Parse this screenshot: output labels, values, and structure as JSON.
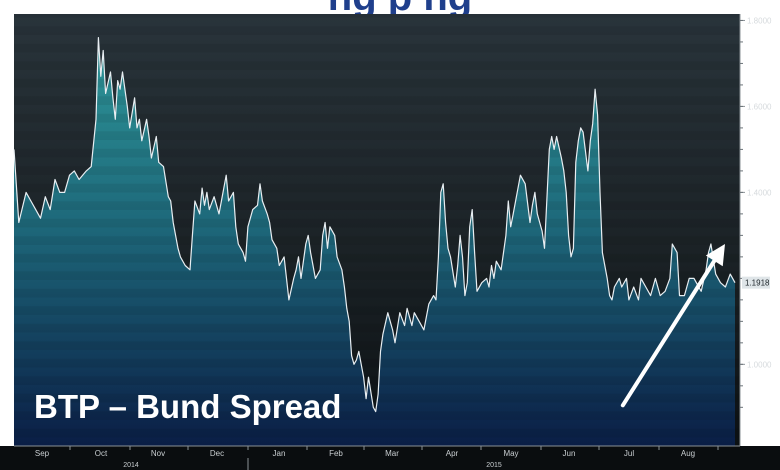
{
  "header_fragment": "ng   p   ng",
  "colors": {
    "background": "#1b2328",
    "line": "#e8eef2",
    "fill_top": "#2d8f96",
    "fill_bottom": "#0d2550",
    "arrow": "#ffffff",
    "label": "#ffffff",
    "header_text": "#1f3f8c"
  },
  "chart_data": {
    "type": "area",
    "annotation": "BTP – Bund Spread",
    "last_value_label": "1.1918",
    "y_ticks": [
      "1.8000",
      "1.6000",
      "1.4000",
      "1.0000"
    ],
    "y_tick_values": [
      1.8,
      1.6,
      1.4,
      1.0
    ],
    "ylim": [
      0.81,
      1.815
    ],
    "x_months": [
      "Sep",
      "Oct",
      "Nov",
      "Dec",
      "Jan",
      "Feb",
      "Mar",
      "Apr",
      "May",
      "Jun",
      "Jul",
      "Aug"
    ],
    "x_years": [
      "2014",
      "2015"
    ],
    "arrow": {
      "from": [
        250,
        0.9
      ],
      "to": [
        299,
        1.28
      ]
    },
    "series": [
      {
        "points": [
          [
            0,
            1.5
          ],
          [
            2,
            1.33
          ],
          [
            5,
            1.4
          ],
          [
            7,
            1.38
          ],
          [
            9,
            1.36
          ],
          [
            11,
            1.34
          ],
          [
            13,
            1.39
          ],
          [
            15,
            1.36
          ],
          [
            17,
            1.43
          ],
          [
            19,
            1.4
          ],
          [
            21,
            1.4
          ],
          [
            23,
            1.44
          ],
          [
            25,
            1.45
          ],
          [
            27,
            1.43
          ],
          [
            30,
            1.45
          ],
          [
            32,
            1.46
          ],
          [
            34,
            1.57
          ],
          [
            35,
            1.76
          ],
          [
            36,
            1.67
          ],
          [
            37,
            1.73
          ],
          [
            38,
            1.63
          ],
          [
            40,
            1.68
          ],
          [
            41,
            1.62
          ],
          [
            42,
            1.57
          ],
          [
            43,
            1.66
          ],
          [
            44,
            1.64
          ],
          [
            45,
            1.68
          ],
          [
            47,
            1.6
          ],
          [
            48,
            1.55
          ],
          [
            50,
            1.62
          ],
          [
            51,
            1.55
          ],
          [
            52,
            1.57
          ],
          [
            53,
            1.52
          ],
          [
            55,
            1.57
          ],
          [
            56,
            1.53
          ],
          [
            57,
            1.48
          ],
          [
            59,
            1.53
          ],
          [
            60,
            1.47
          ],
          [
            62,
            1.46
          ],
          [
            64,
            1.39
          ],
          [
            65,
            1.38
          ],
          [
            66,
            1.33
          ],
          [
            68,
            1.27
          ],
          [
            69,
            1.25
          ],
          [
            71,
            1.23
          ],
          [
            73,
            1.22
          ],
          [
            74,
            1.3
          ],
          [
            75,
            1.38
          ],
          [
            77,
            1.35
          ],
          [
            78,
            1.41
          ],
          [
            79,
            1.37
          ],
          [
            80,
            1.4
          ],
          [
            81,
            1.36
          ],
          [
            83,
            1.39
          ],
          [
            85,
            1.35
          ],
          [
            86,
            1.38
          ],
          [
            88,
            1.44
          ],
          [
            89,
            1.38
          ],
          [
            91,
            1.4
          ],
          [
            92,
            1.32
          ],
          [
            93,
            1.28
          ],
          [
            95,
            1.26
          ],
          [
            96,
            1.24
          ],
          [
            97,
            1.32
          ],
          [
            99,
            1.36
          ],
          [
            101,
            1.37
          ],
          [
            102,
            1.42
          ],
          [
            103,
            1.38
          ],
          [
            105,
            1.35
          ],
          [
            106,
            1.33
          ],
          [
            107,
            1.29
          ],
          [
            109,
            1.27
          ],
          [
            110,
            1.23
          ],
          [
            112,
            1.25
          ],
          [
            113,
            1.2
          ],
          [
            114,
            1.15
          ],
          [
            116,
            1.2
          ],
          [
            117,
            1.22
          ],
          [
            118,
            1.25
          ],
          [
            119,
            1.2
          ],
          [
            121,
            1.28
          ],
          [
            122,
            1.3
          ],
          [
            123,
            1.26
          ],
          [
            125,
            1.2
          ],
          [
            127,
            1.22
          ],
          [
            128,
            1.3
          ],
          [
            129,
            1.33
          ],
          [
            130,
            1.27
          ],
          [
            131,
            1.32
          ],
          [
            133,
            1.3
          ],
          [
            134,
            1.25
          ],
          [
            136,
            1.22
          ],
          [
            137,
            1.18
          ],
          [
            138,
            1.13
          ],
          [
            139,
            1.1
          ],
          [
            140,
            1.02
          ],
          [
            141,
            1.0
          ],
          [
            142,
            1.01
          ],
          [
            143,
            1.03
          ],
          [
            145,
            0.97
          ],
          [
            146,
            0.92
          ],
          [
            147,
            0.97
          ],
          [
            149,
            0.9
          ],
          [
            150,
            0.89
          ],
          [
            151,
            0.93
          ],
          [
            152,
            1.03
          ],
          [
            153,
            1.07
          ],
          [
            155,
            1.12
          ],
          [
            156,
            1.1
          ],
          [
            157,
            1.08
          ],
          [
            158,
            1.05
          ],
          [
            160,
            1.12
          ],
          [
            162,
            1.09
          ],
          [
            163,
            1.13
          ],
          [
            165,
            1.09
          ],
          [
            166,
            1.12
          ],
          [
            168,
            1.1
          ],
          [
            170,
            1.08
          ],
          [
            172,
            1.14
          ],
          [
            174,
            1.16
          ],
          [
            175,
            1.15
          ],
          [
            176,
            1.25
          ],
          [
            177,
            1.4
          ],
          [
            178,
            1.42
          ],
          [
            179,
            1.33
          ],
          [
            180,
            1.27
          ],
          [
            181,
            1.25
          ],
          [
            183,
            1.18
          ],
          [
            184,
            1.23
          ],
          [
            185,
            1.3
          ],
          [
            186,
            1.25
          ],
          [
            187,
            1.16
          ],
          [
            188,
            1.19
          ],
          [
            189,
            1.32
          ],
          [
            190,
            1.36
          ],
          [
            191,
            1.26
          ],
          [
            192,
            1.17
          ],
          [
            194,
            1.19
          ],
          [
            196,
            1.2
          ],
          [
            197,
            1.18
          ],
          [
            198,
            1.23
          ],
          [
            199,
            1.2
          ],
          [
            200,
            1.24
          ],
          [
            202,
            1.22
          ],
          [
            204,
            1.3
          ],
          [
            205,
            1.38
          ],
          [
            206,
            1.32
          ],
          [
            207,
            1.35
          ],
          [
            208,
            1.38
          ],
          [
            210,
            1.44
          ],
          [
            212,
            1.42
          ],
          [
            214,
            1.33
          ],
          [
            215,
            1.37
          ],
          [
            216,
            1.4
          ],
          [
            217,
            1.35
          ],
          [
            219,
            1.31
          ],
          [
            220,
            1.27
          ],
          [
            222,
            1.5
          ],
          [
            223,
            1.53
          ],
          [
            224,
            1.5
          ],
          [
            225,
            1.53
          ],
          [
            227,
            1.48
          ],
          [
            228,
            1.45
          ],
          [
            229,
            1.4
          ],
          [
            230,
            1.3
          ],
          [
            231,
            1.25
          ],
          [
            232,
            1.27
          ],
          [
            233,
            1.47
          ],
          [
            234,
            1.52
          ],
          [
            235,
            1.55
          ],
          [
            236,
            1.54
          ],
          [
            238,
            1.45
          ],
          [
            239,
            1.52
          ],
          [
            240,
            1.56
          ],
          [
            241,
            1.64
          ],
          [
            242,
            1.58
          ],
          [
            243,
            1.4
          ],
          [
            244,
            1.26
          ],
          [
            246,
            1.2
          ],
          [
            247,
            1.16
          ],
          [
            248,
            1.15
          ],
          [
            249,
            1.18
          ],
          [
            251,
            1.2
          ],
          [
            252,
            1.18
          ],
          [
            254,
            1.2
          ],
          [
            255,
            1.15
          ],
          [
            257,
            1.18
          ],
          [
            259,
            1.15
          ],
          [
            260,
            1.2
          ],
          [
            262,
            1.18
          ],
          [
            264,
            1.16
          ],
          [
            266,
            1.2
          ],
          [
            268,
            1.16
          ],
          [
            270,
            1.17
          ],
          [
            272,
            1.2
          ],
          [
            273,
            1.28
          ],
          [
            275,
            1.26
          ],
          [
            276,
            1.16
          ],
          [
            278,
            1.16
          ],
          [
            280,
            1.2
          ],
          [
            282,
            1.2
          ],
          [
            285,
            1.17
          ],
          [
            287,
            1.22
          ],
          [
            288,
            1.26
          ],
          [
            289,
            1.28
          ],
          [
            291,
            1.21
          ],
          [
            293,
            1.19
          ],
          [
            295,
            1.18
          ],
          [
            297,
            1.21
          ],
          [
            299,
            1.19
          ]
        ]
      }
    ]
  }
}
